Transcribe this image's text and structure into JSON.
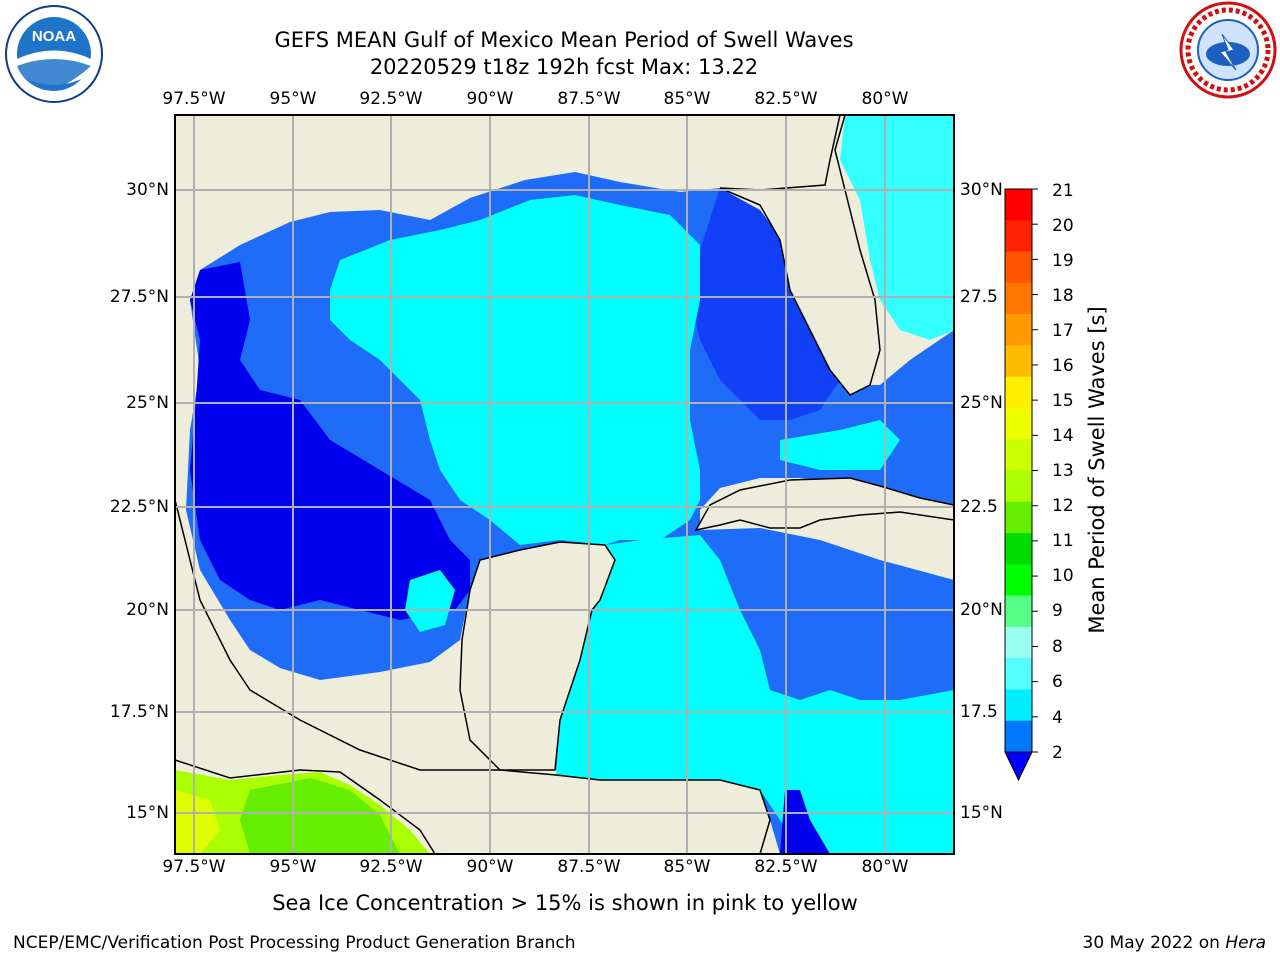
{
  "header": {
    "title_line1": "GEFS MEAN Gulf of Mexico Mean Period of Swell Waves",
    "title_line2": "20220529 t18z 192h fcst   Max: 13.22"
  },
  "logos": {
    "left": "noaa-logo",
    "left_text": "NOAA",
    "right": "national-weather-service-logo",
    "right_text": "NATIONAL WEATHER SERVICE"
  },
  "map": {
    "lon_labels": [
      "97.5°W",
      "95°W",
      "92.5°W",
      "90°W",
      "87.5°W",
      "85°W",
      "82.5°W",
      "80°W"
    ],
    "lat_labels_left": [
      "30°N",
      "27.5°N",
      "25°N",
      "22.5°N",
      "20°N",
      "17.5°N",
      "15°N"
    ],
    "lat_labels_right": [
      "30°N",
      "27.5",
      "25°N",
      "22.5",
      "20°N",
      "17.5",
      "15°N"
    ],
    "land_color": "#eeeddc",
    "grid_color": "#b0b0b0"
  },
  "colorbar": {
    "title": "Mean Period of Swell Waves [s]",
    "ticks": [
      "21",
      "20",
      "19",
      "18",
      "17",
      "16",
      "15",
      "14",
      "13",
      "12",
      "11",
      "10",
      "9",
      "8",
      "6",
      "4",
      "2"
    ],
    "colors": [
      "#ff0000",
      "#ff2200",
      "#ff5500",
      "#ff7700",
      "#ff9900",
      "#ffbb00",
      "#ffee00",
      "#eeff00",
      "#ccff00",
      "#aaff00",
      "#66ee00",
      "#00dd00",
      "#00ff00",
      "#55ff88",
      "#99ffee",
      "#55ffff",
      "#00eeff",
      "#0077ff",
      "#0000ff"
    ]
  },
  "subtitle": "Sea Ice Concentration > 15% is shown in pink to yellow",
  "footer": {
    "left": "NCEP/EMC/Verification Post Processing Product Generation Branch",
    "right_date": "30 May 2022 on",
    "right_host": "Hera"
  }
}
